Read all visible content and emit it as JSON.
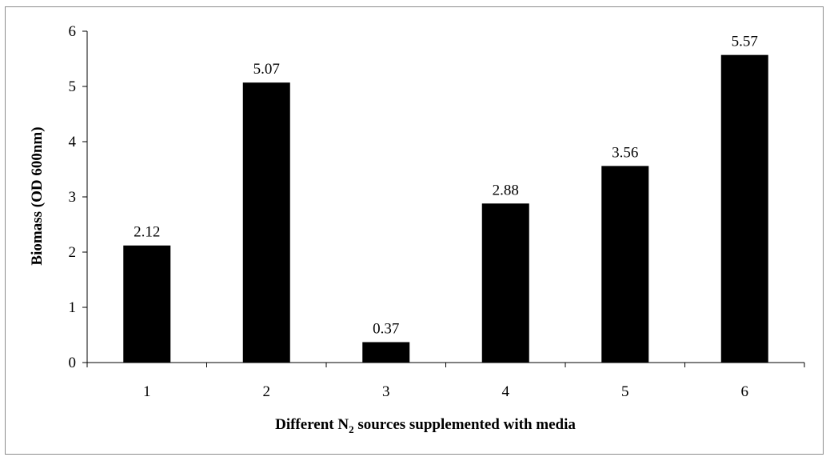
{
  "chart_data": {
    "type": "bar",
    "categories": [
      "1",
      "2",
      "3",
      "4",
      "5",
      "6"
    ],
    "values": [
      2.12,
      5.07,
      0.37,
      2.88,
      3.56,
      5.57
    ],
    "data_labels": [
      "2.12",
      "5.07",
      "0.37",
      "2.88",
      "3.56",
      "5.57"
    ],
    "xlabel_prefix": "Different N",
    "xlabel_subscript": "2",
    "xlabel_suffix": " sources supplemented with media",
    "ylabel": "Biomass (OD 600nm)",
    "ylim": [
      0,
      6
    ],
    "yticks": [
      "0",
      "1",
      "2",
      "3",
      "4",
      "5",
      "6"
    ],
    "grid": false,
    "legend": "none",
    "bar_color": "#000000"
  }
}
